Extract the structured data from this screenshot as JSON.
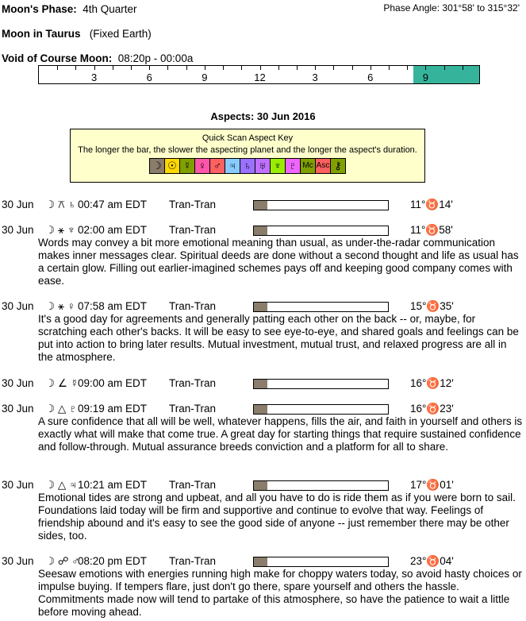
{
  "header": {
    "phase_label": "Moon's Phase:",
    "phase": "4th Quarter",
    "phase_angle": "Phase Angle:  301°58' to 315°32'",
    "moon_sign_label": "Moon in Taurus",
    "moon_sign_note": "(Fixed Earth)",
    "void_label": "Void of Course Moon:",
    "void_time": "08:20p -  00:00a"
  },
  "timeline": {
    "labels": [
      "3",
      "6",
      "9",
      "12",
      "3",
      "6",
      "9"
    ],
    "void_start_hour": 20.33,
    "void_end_hour": 24,
    "void_color": "#36b49b"
  },
  "aspects_title": "Aspects: 30 Jun 2016",
  "key": {
    "title": "Quick Scan Aspect Key",
    "text": "The longer the bar, the slower the aspecting planet and the longer the aspect's duration.",
    "glyphs": [
      {
        "s": "☽",
        "c": "#8b7d6b",
        "icon": "moon-icon"
      },
      {
        "s": "☉",
        "c": "#ffd700",
        "icon": "sun-icon"
      },
      {
        "s": "☿",
        "c": "#80a000",
        "icon": "mercury-icon"
      },
      {
        "s": "♀",
        "c": "#ff55aa",
        "icon": "venus-icon"
      },
      {
        "s": "♂",
        "c": "#ff6060",
        "icon": "mars-icon"
      },
      {
        "s": "♃",
        "c": "#88ccff",
        "icon": "jupiter-icon"
      },
      {
        "s": "♄",
        "c": "#9a70ff",
        "icon": "saturn-icon"
      },
      {
        "s": "♅",
        "c": "#c070ff",
        "icon": "uranus-icon"
      },
      {
        "s": "♆",
        "c": "#99ee00",
        "icon": "neptune-icon"
      },
      {
        "s": "♇",
        "c": "#ee66ff",
        "icon": "pluto-icon"
      },
      {
        "s": "Mc",
        "c": "#80a000",
        "icon": "midheaven-icon"
      },
      {
        "s": "Asc",
        "c": "#ff6060",
        "icon": "ascendant-icon"
      },
      {
        "s": "⚷",
        "c": "#80a000",
        "icon": "chiron-icon"
      }
    ]
  },
  "aspects": [
    {
      "date": "30 Jun",
      "glyph": "☽ ⚻ ♄",
      "time": "00:47 am EDT",
      "type": "Tran-Tran",
      "pos": "11°♉14'",
      "bar": 0.1,
      "desc": ""
    },
    {
      "date": "30 Jun",
      "glyph": "☽ ⚹ ♆",
      "time": "02:00 am EDT",
      "type": "Tran-Tran",
      "pos": "11°♉58'",
      "bar": 0.1,
      "desc": "Words may convey a bit more emotional meaning than usual, as under-the-radar communication makes inner messages clear. Spiritual deeds are done without a second thought and life as usual has a certain glow. Filling out earlier-imagined schemes pays off and keeping good company comes with ease."
    },
    {
      "date": "30 Jun",
      "glyph": "☽ ⚹ ♀",
      "time": "07:58 am EDT",
      "type": "Tran-Tran",
      "pos": "15°♉35'",
      "bar": 0.1,
      "desc": "It's a good day for agreements and generally patting each other on the back -- or, maybe, for scratching each other's backs. It will be easy to see eye-to-eye, and shared goals and feelings can be put into action to bring later results. Mutual investment, mutual trust, and relaxed progress are all in the atmosphere."
    },
    {
      "date": "30 Jun",
      "glyph": "☽ ∠ ☿",
      "time": "09:00 am EDT",
      "type": "Tran-Tran",
      "pos": "16°♉12'",
      "bar": 0.1,
      "desc": ""
    },
    {
      "date": "30 Jun",
      "glyph": "☽ △ ♇",
      "time": "09:19 am EDT",
      "type": "Tran-Tran",
      "pos": "16°♉23'",
      "bar": 0.1,
      "desc": "A sure confidence that all will be well, whatever happens, fills the air, and faith in yourself and others is exactly what will make that come true. A great day for starting things that require sustained confidence and follow-through. Mutual assurance breeds conviction and a platform for all to share."
    },
    {
      "date": "30 Jun",
      "glyph": "☽ △ ♃",
      "time": "10:21 am EDT",
      "type": "Tran-Tran",
      "pos": "17°♉01'",
      "bar": 0.1,
      "desc": "Emotional tides are strong and upbeat, and all you have to do is ride them as if you were born to sail. Foundations laid today will be firm and supportive and continue to evolve that way. Feelings of friendship abound and it's easy to see the good side of anyone -- just remember there may be other sides, too."
    },
    {
      "date": "30 Jun",
      "glyph": "☽ ☍ ♂",
      "time": "08:20 pm EDT",
      "type": "Tran-Tran",
      "pos": "23°♉04'",
      "bar": 0.1,
      "desc": "Seesaw emotions with energies running high make for choppy waters today, so avoid hasty choices or impulse buying. If tempers flare, just don't go there, spare yourself and others the hassle. Commitments made now will tend to partake of this atmosphere, so have the patience to wait a little before moving ahead."
    }
  ]
}
